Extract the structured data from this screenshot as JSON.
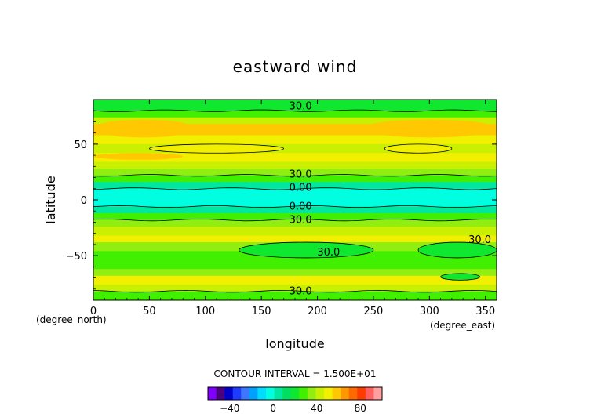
{
  "chart_data": {
    "type": "heatmap",
    "title": "eastward wind",
    "xlabel": "longitude",
    "ylabel": "latitude",
    "x_unit": "(degree_east)",
    "y_unit": "(degree_north)",
    "xlim": [
      0,
      360
    ],
    "ylim": [
      -90,
      90
    ],
    "x_ticks": [
      "0",
      "50",
      "100",
      "150",
      "200",
      "250",
      "300",
      "350"
    ],
    "y_ticks": [
      "50",
      "0",
      "−50"
    ],
    "contour_interval_text": "CONTOUR INTERVAL = 1.500E+01",
    "contour_labels": [
      "30.0",
      "30.0",
      "0.00",
      "0.00",
      "30.0",
      "30.0",
      "30.0",
      "30.0"
    ],
    "colorbar": {
      "ticks": [
        "−40",
        "0",
        "40",
        "80"
      ],
      "colors": [
        "#7f00ff",
        "#4b0082",
        "#0000cd",
        "#1e3cff",
        "#3c78ff",
        "#00a0ff",
        "#00dcff",
        "#00ffe0",
        "#00e8a0",
        "#00e060",
        "#10e830",
        "#40f000",
        "#90ee10",
        "#c8f000",
        "#f0f000",
        "#ffc800",
        "#ff9800",
        "#ff6a00",
        "#ff3c00",
        "#ff6060",
        "#ffa0a0"
      ]
    },
    "bands": [
      {
        "lat": [
          80,
          90
        ],
        "color": "#10e830"
      },
      {
        "lat": [
          74,
          80
        ],
        "color": "#40f000"
      },
      {
        "lat": [
          68,
          74
        ],
        "color": "#c8f000"
      },
      {
        "lat": [
          58,
          68
        ],
        "color": "#ffc800"
      },
      {
        "lat": [
          50,
          58
        ],
        "color": "#f0f000"
      },
      {
        "lat": [
          42,
          50
        ],
        "color": "#c8f000"
      },
      {
        "lat": [
          34,
          42
        ],
        "color": "#f0f000"
      },
      {
        "lat": [
          28,
          34
        ],
        "color": "#c8f000"
      },
      {
        "lat": [
          22,
          28
        ],
        "color": "#90ee10"
      },
      {
        "lat": [
          16,
          22
        ],
        "color": "#40f000"
      },
      {
        "lat": [
          10,
          16
        ],
        "color": "#00e8a0"
      },
      {
        "lat": [
          -6,
          10
        ],
        "color": "#00ffe0"
      },
      {
        "lat": [
          -12,
          -6
        ],
        "color": "#00e8a0"
      },
      {
        "lat": [
          -18,
          -12
        ],
        "color": "#40f000"
      },
      {
        "lat": [
          -24,
          -18
        ],
        "color": "#90ee10"
      },
      {
        "lat": [
          -32,
          -24
        ],
        "color": "#c8f000"
      },
      {
        "lat": [
          -38,
          -32
        ],
        "color": "#f0f000"
      },
      {
        "lat": [
          -46,
          -38
        ],
        "color": "#90ee10"
      },
      {
        "lat": [
          -54,
          -46
        ],
        "color": "#40f000"
      },
      {
        "lat": [
          -62,
          -54
        ],
        "color": "#40f000"
      },
      {
        "lat": [
          -68,
          -62
        ],
        "color": "#90ee10"
      },
      {
        "lat": [
          -76,
          -68
        ],
        "color": "#f0f000"
      },
      {
        "lat": [
          -82,
          -76
        ],
        "color": "#c8f000"
      },
      {
        "lat": [
          -90,
          -82
        ],
        "color": "#40f000"
      }
    ],
    "patches": [
      {
        "lon": [
          0,
          90
        ],
        "lat": [
          56,
          72
        ],
        "color": "#ffc800"
      },
      {
        "lon": [
          240,
          360
        ],
        "lat": [
          56,
          72
        ],
        "color": "#ffc800"
      },
      {
        "lon": [
          0,
          80
        ],
        "lat": [
          36,
          42
        ],
        "color": "#ffc800"
      },
      {
        "lon": [
          130,
          250
        ],
        "lat": [
          -52,
          -38
        ],
        "color": "#10e830"
      },
      {
        "lon": [
          290,
          360
        ],
        "lat": [
          -52,
          -38
        ],
        "color": "#10e830"
      },
      {
        "lon": [
          310,
          345
        ],
        "lat": [
          -72,
          -66
        ],
        "color": "#10e830"
      },
      {
        "lon": [
          50,
          170
        ],
        "lat": [
          42,
          50
        ],
        "color": "#f0f000"
      },
      {
        "lon": [
          260,
          320
        ],
        "lat": [
          42,
          50
        ],
        "color": "#f0f000"
      }
    ]
  }
}
